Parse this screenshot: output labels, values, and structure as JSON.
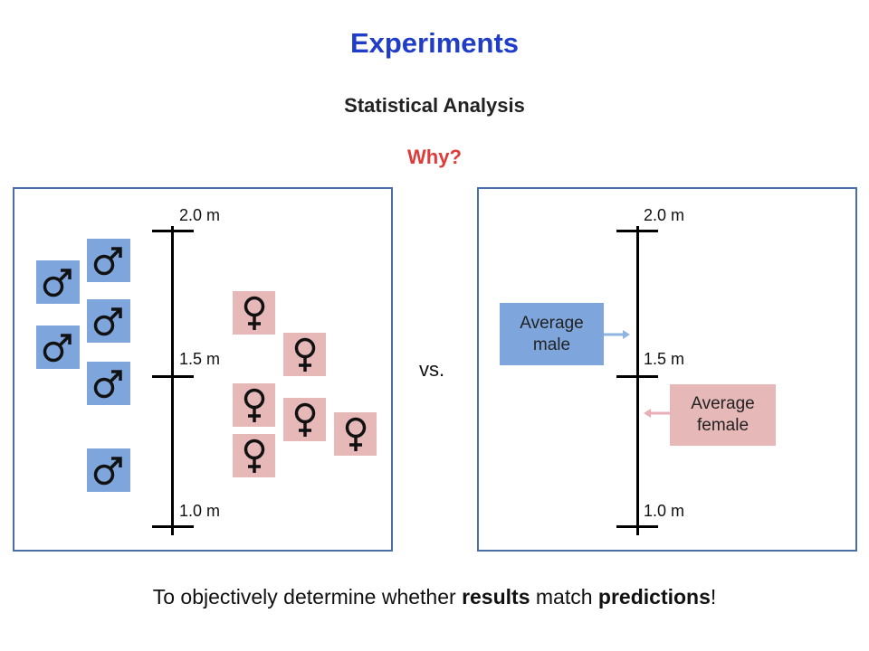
{
  "title": "Experiments",
  "subtitle": "Statistical Analysis",
  "question": "Why?",
  "scale": {
    "top": "2.0 m",
    "mid": "1.5 m",
    "bottom": "1.0 m"
  },
  "vs_label": "vs.",
  "average_male": "Average\nmale",
  "average_female": "Average\nfemale",
  "conclusion": {
    "part1": "To objectively determine whether ",
    "bold1": "results",
    "part2": " match ",
    "bold2": "predictions",
    "part3": "!"
  },
  "colors": {
    "title": "#1f3dc8",
    "question": "#e03b3b",
    "male": "#7ea6dc",
    "female": "#e6b8b8",
    "panel_border": "#4a6ea8"
  },
  "icons": {
    "male": "male-symbol-icon",
    "female": "female-symbol-icon"
  }
}
